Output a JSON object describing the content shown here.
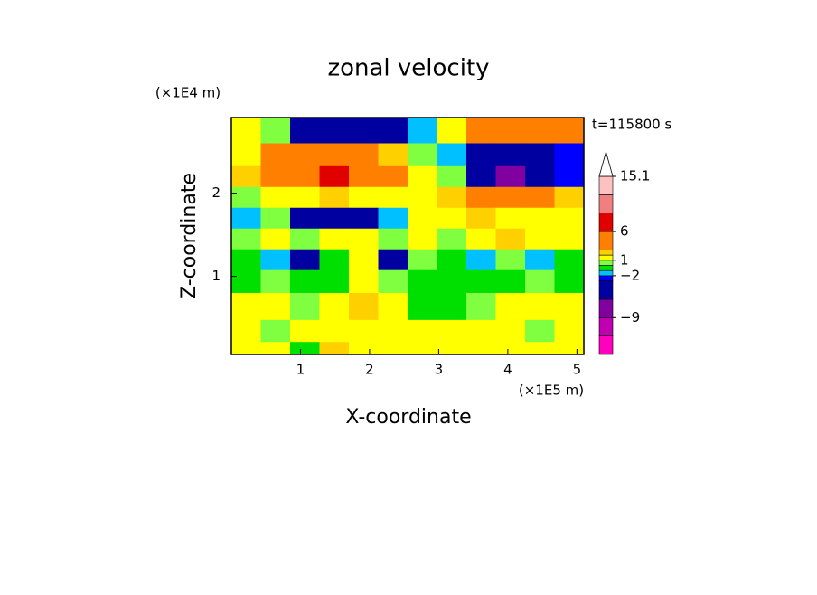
{
  "chart_data": {
    "type": "contour",
    "title": "zonal velocity",
    "y_unit": "(×1E4 m)",
    "x_unit": "(×1E5 m)",
    "xlabel": "X-coordinate",
    "ylabel": "Z-coordinate",
    "annotation": "t=115800 s",
    "xlim": [
      0,
      5.1
    ],
    "ylim": [
      0.06,
      2.91
    ],
    "xticks": [
      1,
      2,
      3,
      4,
      5
    ],
    "yticks": [
      1,
      2
    ],
    "x": [
      0.21,
      0.64,
      1.06,
      1.49,
      1.91,
      2.34,
      2.76,
      3.19,
      3.61,
      4.04,
      4.46,
      4.89
    ],
    "y": [
      2.75,
      2.45,
      2.2,
      1.95,
      1.7,
      1.45,
      1.2,
      0.95,
      0.65,
      0.3,
      0.12
    ],
    "z": [
      [
        1.5,
        0.5,
        -4,
        -5,
        -5,
        -4,
        -1.5,
        1.5,
        4,
        4.5,
        4,
        4
      ],
      [
        1.5,
        4,
        5,
        5,
        4,
        2,
        0.5,
        -1.5,
        -4,
        -5,
        -4,
        -3
      ],
      [
        2,
        4,
        5,
        7,
        5,
        4,
        1.5,
        0.5,
        -4,
        -7,
        -5,
        -2.5
      ],
      [
        0.5,
        1.5,
        1.5,
        2,
        1.5,
        1.5,
        1,
        2,
        4,
        4,
        4,
        2
      ],
      [
        -1.5,
        0.5,
        -4,
        -5,
        -4,
        -1.5,
        1,
        1.5,
        2,
        1.5,
        1.5,
        1
      ],
      [
        0.5,
        1.5,
        0.5,
        1.5,
        1,
        0,
        1,
        0.5,
        1.5,
        2,
        1.5,
        1.5
      ],
      [
        -0.5,
        -1.5,
        -4,
        -0.5,
        1,
        -4,
        0.5,
        -0.5,
        -1.5,
        0.5,
        -1.5,
        -0.5
      ],
      [
        -0.5,
        0.5,
        -0.5,
        -0.5,
        1.5,
        0.5,
        -0.5,
        -0.5,
        -0.5,
        -0.5,
        0.5,
        -0.5
      ],
      [
        1.5,
        1.5,
        0.5,
        1.5,
        2,
        1.5,
        -0.5,
        -0.5,
        0.5,
        1.5,
        1.5,
        1.5
      ],
      [
        1.5,
        0.5,
        1.5,
        1.5,
        1.5,
        1.5,
        1.5,
        1.5,
        1.5,
        1.5,
        0.5,
        1.5
      ],
      [
        1.5,
        1.5,
        -0.5,
        2.5,
        1.5,
        1.5,
        1.5,
        1.5,
        1.5,
        1.5,
        1.5,
        1.5
      ]
    ],
    "levels": [
      -15,
      -12,
      -9,
      -6,
      -3,
      -2,
      -1,
      0,
      1,
      2,
      3,
      6,
      9,
      12,
      15.1
    ],
    "colors": [
      "#ff00c0",
      "#c000b0",
      "#8000a0",
      "#0000a0",
      "#0000ff",
      "#00c0ff",
      "#00e000",
      "#80ff40",
      "#ffff00",
      "#ffd000",
      "#ff8000",
      "#e00000",
      "#f08080",
      "#ffc0c0"
    ],
    "colorbar_ticks": [
      15.1,
      6,
      1,
      {
        "value": -2,
        "label": "−2"
      },
      {
        "value": -9,
        "label": "−9"
      }
    ]
  }
}
